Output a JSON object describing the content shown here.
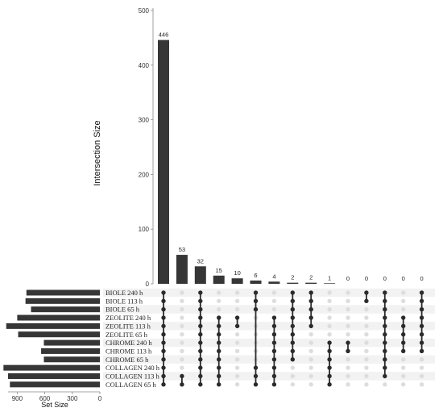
{
  "chart_data": {
    "type": "bar",
    "subtype": "upset",
    "ylabel": "Intersection Size",
    "set_size_label": "Set Size",
    "ylim": [
      0,
      500
    ],
    "yticks": [
      0,
      100,
      200,
      300,
      400,
      500
    ],
    "set_size_ticks": [
      900,
      600,
      300,
      0
    ],
    "set_size_max": 1000,
    "sets": [
      {
        "name": "BIOLE 240 h",
        "size": 800
      },
      {
        "name": "BIOLE 113 h",
        "size": 810
      },
      {
        "name": "BIOLE 65 h",
        "size": 750
      },
      {
        "name": "ZEOLITE 240 h",
        "size": 900
      },
      {
        "name": "ZEOLITE 113 h",
        "size": 1020
      },
      {
        "name": "ZEOLITE 65 h",
        "size": 890
      },
      {
        "name": "CHROME 240 h",
        "size": 610
      },
      {
        "name": "CHROME 113 h",
        "size": 640
      },
      {
        "name": "CHROME 65 h",
        "size": 610
      },
      {
        "name": "COLLAGEN 240 h",
        "size": 1050
      },
      {
        "name": "COLLAGEN 113 h",
        "size": 1000
      },
      {
        "name": "COLLAGEN 65 h",
        "size": 980
      }
    ],
    "intersections": [
      {
        "value": 446,
        "label": "446",
        "members": [
          0,
          1,
          2,
          3,
          4,
          5,
          6,
          7,
          8,
          9,
          10,
          11
        ]
      },
      {
        "value": 53,
        "label": "53",
        "members": [
          10,
          11
        ]
      },
      {
        "value": 32,
        "label": "32",
        "members": [
          0,
          1,
          2,
          3,
          4,
          5,
          6,
          7,
          8,
          9,
          10,
          11
        ]
      },
      {
        "value": 15,
        "label": "15",
        "members": [
          3,
          4,
          5,
          6,
          7,
          8,
          9,
          10,
          11
        ]
      },
      {
        "value": 10,
        "label": "10",
        "members": [
          3,
          4
        ]
      },
      {
        "value": 6,
        "label": "6",
        "members": [
          0,
          1,
          2,
          9,
          10,
          11
        ]
      },
      {
        "value": 4,
        "label": "4",
        "members": [
          3,
          4,
          5,
          6,
          7,
          8,
          9,
          10,
          11
        ]
      },
      {
        "value": 2,
        "label": "2",
        "members": [
          0,
          1,
          2,
          3,
          4,
          5,
          6,
          7,
          8
        ]
      },
      {
        "value": 2,
        "label": "2",
        "members": [
          0,
          1,
          2,
          3,
          4
        ]
      },
      {
        "value": 1,
        "label": "1",
        "members": [
          6,
          7,
          8,
          9,
          10,
          11
        ]
      },
      {
        "value": 0,
        "label": "0",
        "members": [
          6,
          7
        ]
      },
      {
        "value": 0,
        "label": "0",
        "members": [
          0,
          1
        ]
      },
      {
        "value": 0,
        "label": "0",
        "members": [
          0,
          1,
          2,
          3,
          4,
          5,
          6,
          7,
          8,
          9,
          10
        ]
      },
      {
        "value": 0,
        "label": "0",
        "members": [
          3,
          4,
          5,
          6,
          7
        ]
      },
      {
        "value": 0,
        "label": "0",
        "members": [
          0,
          1,
          2,
          3,
          4,
          5,
          6,
          7
        ]
      }
    ],
    "colors": {
      "bar": "#363636",
      "dot_active": "#2b2b2b",
      "dot_inactive": "#dddddd",
      "stripe": "#f2f2f2",
      "axis": "#888888"
    }
  }
}
